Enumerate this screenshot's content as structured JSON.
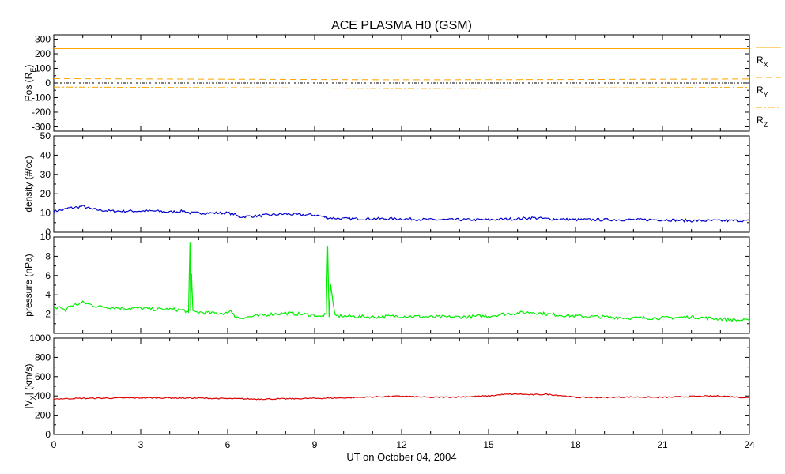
{
  "title": "ACE PLASMA H0 (GSM)",
  "x_axis": {
    "label": "UT on October 04, 2004",
    "range": [
      0,
      24
    ],
    "ticks": [
      0,
      3,
      6,
      9,
      12,
      15,
      18,
      21,
      24
    ],
    "minor_step": 1
  },
  "colors": {
    "position": "#ffa500",
    "density": "#0000cc",
    "pressure": "#00ee00",
    "velocity": "#dd0000",
    "axis": "#000000"
  },
  "chart_data": [
    {
      "type": "line",
      "id": "position",
      "ylabel_main": "Pos (R",
      "ylabel_sub": "E",
      "ylabel_end": ")",
      "ylim": [
        -330,
        330
      ],
      "yticks": [
        -300,
        -200,
        -100,
        0,
        100,
        200,
        300
      ],
      "ytick_labels": [
        "-300",
        "-200",
        "-100",
        "0",
        "100",
        "200",
        "300"
      ],
      "zero_line": true,
      "x": [
        0,
        6,
        12,
        18,
        24
      ],
      "series": [
        {
          "name": "R",
          "sub": "X",
          "style": "solid",
          "values": [
            235,
            235,
            235,
            235,
            235
          ]
        },
        {
          "name": "R",
          "sub": "Y",
          "style": "dashed",
          "values": [
            30,
            26,
            22,
            24,
            28
          ]
        },
        {
          "name": "R",
          "sub": "Z",
          "style": "dashdot",
          "values": [
            -28,
            -32,
            -38,
            -34,
            -30
          ]
        }
      ]
    },
    {
      "type": "line",
      "id": "density",
      "ylabel_main": "density (#/cc)",
      "ylim": [
        0,
        50
      ],
      "yticks": [
        0,
        10,
        20,
        30,
        40,
        50
      ],
      "ytick_labels": [
        "0",
        "10",
        "20",
        "30",
        "40",
        "50"
      ],
      "x": [
        0,
        0.3,
        0.5,
        0.8,
        1,
        1.3,
        1.6,
        2,
        2.5,
        3,
        3.5,
        4,
        4.5,
        4.7,
        5,
        5.5,
        6,
        6.2,
        6.4,
        7,
        7.5,
        8,
        8.5,
        9,
        9.5,
        10,
        11,
        12,
        13,
        14,
        15,
        16,
        16.5,
        17,
        18,
        19,
        20,
        21,
        22,
        23,
        24
      ],
      "values": [
        11,
        11.5,
        12.5,
        13,
        13.5,
        12,
        11.5,
        11,
        11,
        11,
        11,
        10.5,
        11,
        10,
        10,
        10,
        10,
        9.5,
        8,
        8.5,
        9,
        9.5,
        9,
        9,
        7.5,
        7,
        7,
        7,
        6.5,
        6.5,
        6.5,
        7,
        7.5,
        7,
        6.5,
        6.5,
        6.5,
        6.5,
        6,
        6,
        6
      ]
    },
    {
      "type": "line",
      "id": "pressure",
      "ylabel_main": "pressure (nPa)",
      "ylim": [
        0,
        10
      ],
      "yticks": [
        0,
        2,
        4,
        6,
        8,
        10
      ],
      "ytick_labels": [
        "",
        "2",
        "4",
        "6",
        "8",
        "10"
      ],
      "x": [
        0,
        0.2,
        0.4,
        0.5,
        0.8,
        1,
        1.5,
        2,
        2.5,
        3,
        3.5,
        4,
        4.5,
        4.65,
        4.7,
        4.72,
        4.75,
        4.8,
        5,
        5.5,
        6,
        6.1,
        6.2,
        6.4,
        7,
        7.5,
        8,
        8.5,
        9,
        9.2,
        9.4,
        9.45,
        9.5,
        9.55,
        9.7,
        10,
        11,
        12,
        13,
        14,
        15,
        15.5,
        16,
        16.5,
        17,
        18,
        19,
        20,
        21,
        22,
        23,
        23.5,
        24
      ],
      "values": [
        2.5,
        2.8,
        2.3,
        2.8,
        3,
        3.2,
        2.8,
        2.7,
        2.6,
        2.6,
        2.5,
        2.5,
        2.4,
        2.2,
        9.5,
        2.3,
        6.2,
        2.2,
        2.2,
        2.1,
        2.1,
        2.4,
        1.9,
        1.6,
        1.8,
        2.0,
        2.1,
        2.0,
        1.9,
        1.7,
        2.0,
        9.0,
        1.7,
        5.1,
        1.8,
        1.8,
        1.7,
        1.8,
        1.7,
        1.7,
        1.8,
        2.0,
        2.1,
        2.2,
        2.0,
        1.8,
        1.7,
        1.6,
        1.6,
        1.7,
        1.5,
        1.4,
        1.3
      ]
    },
    {
      "type": "line",
      "id": "velocity",
      "ylabel_main": "|V",
      "ylabel_sub": "X",
      "ylabel_end": "| (km/s)",
      "ylim": [
        0,
        1000
      ],
      "yticks": [
        0,
        200,
        400,
        600,
        800,
        1000
      ],
      "ytick_labels": [
        "0",
        "200",
        "400",
        "600",
        "800",
        "1000"
      ],
      "x": [
        0,
        1,
        2,
        3,
        4,
        5,
        6,
        7,
        8,
        9,
        10,
        11,
        12,
        13,
        14,
        15,
        15.5,
        16,
        16.5,
        17,
        17.5,
        18,
        19,
        20,
        21,
        22,
        23,
        24
      ],
      "values": [
        370,
        375,
        378,
        380,
        380,
        378,
        372,
        368,
        370,
        375,
        380,
        390,
        398,
        385,
        390,
        400,
        415,
        420,
        412,
        418,
        405,
        385,
        385,
        390,
        385,
        395,
        400,
        380
      ]
    }
  ]
}
